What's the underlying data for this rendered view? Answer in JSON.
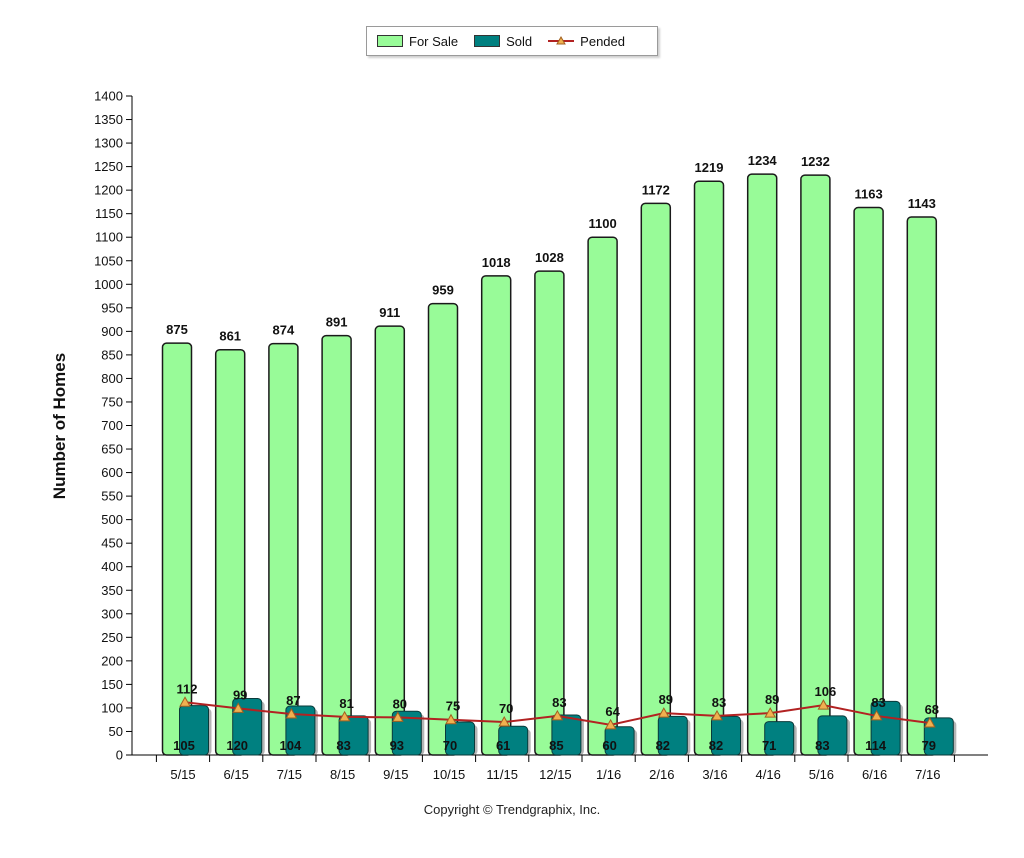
{
  "chart_data": {
    "type": "bar",
    "categories": [
      "5/15",
      "6/15",
      "7/15",
      "8/15",
      "9/15",
      "10/15",
      "11/15",
      "12/15",
      "1/16",
      "2/16",
      "3/16",
      "4/16",
      "5/16",
      "6/16",
      "7/16"
    ],
    "series": [
      {
        "name": "For Sale",
        "type": "bar",
        "color": "#98fb98",
        "values": [
          875,
          861,
          874,
          891,
          911,
          959,
          1018,
          1028,
          1100,
          1172,
          1219,
          1234,
          1232,
          1163,
          1143
        ]
      },
      {
        "name": "Sold",
        "type": "bar",
        "color": "#008080",
        "values": [
          105,
          120,
          104,
          83,
          93,
          70,
          61,
          85,
          60,
          82,
          82,
          71,
          83,
          114,
          79
        ]
      },
      {
        "name": "Pended",
        "type": "line",
        "color": "#b22222",
        "marker_color": "#f0b050",
        "values": [
          112,
          99,
          87,
          81,
          80,
          75,
          70,
          83,
          64,
          89,
          83,
          89,
          106,
          83,
          68
        ]
      }
    ],
    "ylabel": "Number of Homes",
    "xlabel": "",
    "ylim": [
      0,
      1400
    ],
    "ytick_step": 50,
    "legend_position": "top-center"
  },
  "footer": {
    "copyright": "Copyright © Trendgraphix, Inc."
  }
}
